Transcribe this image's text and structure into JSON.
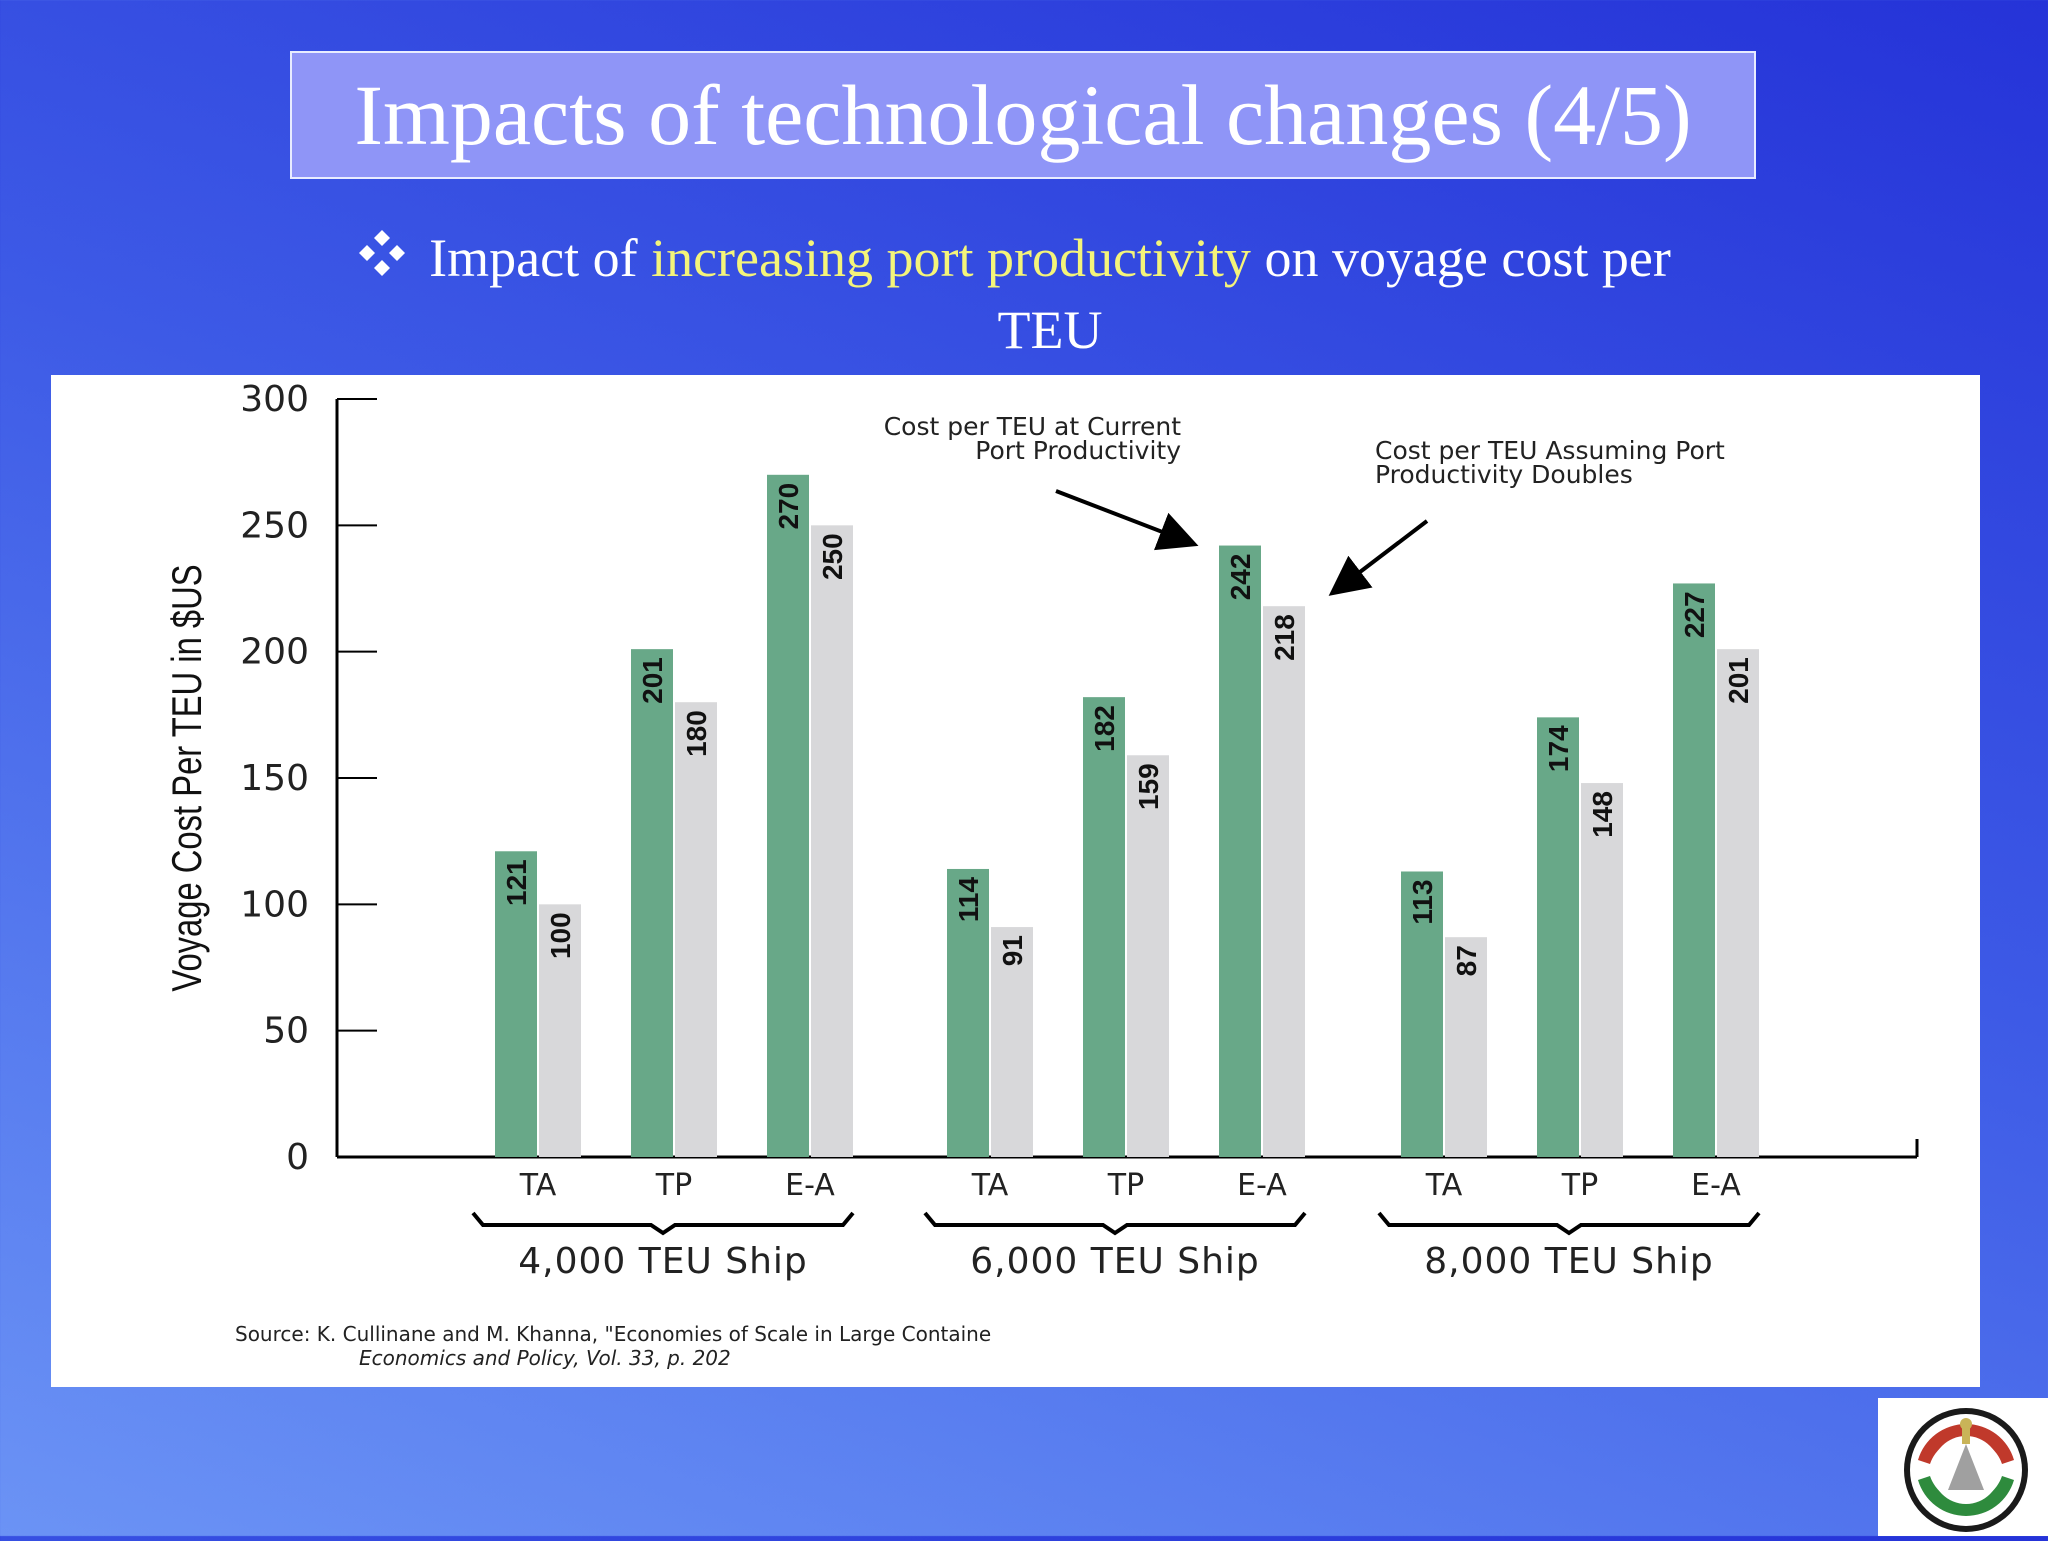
{
  "slide": {
    "title": "Impacts of technological changes (4/5)",
    "subtitle_part1": "Impact of ",
    "subtitle_highlight": "increasing port productivity",
    "subtitle_part2": " on voyage cost per",
    "subtitle_line2": "TEU",
    "bullet_icon": "diamond-bullet-icon",
    "logo_icon": "ports-corporation-logo",
    "colors": {
      "background": "#3a55e4",
      "title_box": "#8f95f7",
      "highlight": "#f4f47a",
      "bar_current": "#68a888",
      "bar_doubled": "#d8d8da"
    }
  },
  "chart_data": {
    "type": "bar",
    "ylabel": "Voyage Cost Per TEU in $US",
    "ylim": [
      0,
      300
    ],
    "yticks": [
      "0",
      "50",
      "100",
      "150",
      "200",
      "250",
      "300"
    ],
    "groups": [
      {
        "name": "4,000 TEU Ship",
        "categories": [
          "TA",
          "TP",
          "E-A"
        ],
        "current": [
          121,
          201,
          270
        ],
        "doubled": [
          100,
          180,
          250
        ]
      },
      {
        "name": "6,000 TEU Ship",
        "categories": [
          "TA",
          "TP",
          "E-A"
        ],
        "current": [
          114,
          182,
          242
        ],
        "doubled": [
          91,
          159,
          218
        ]
      },
      {
        "name": "8,000 TEU Ship",
        "categories": [
          "TA",
          "TP",
          "E-A"
        ],
        "current": [
          113,
          174,
          227
        ],
        "doubled": [
          87,
          148,
          201
        ]
      }
    ],
    "annotations": {
      "current_line1": "Cost per TEU at Current",
      "current_line2": "Port Productivity",
      "doubled_line1": "Cost per TEU Assuming Port",
      "doubled_line2": "Productivity Doubles"
    },
    "source_line1": "Source:  K. Cullinane and M. Khanna, \"Economies of Scale in Large Containe",
    "source_line2": "Economics and Policy, Vol. 33, p. 202",
    "grid": false,
    "legend": "none"
  }
}
